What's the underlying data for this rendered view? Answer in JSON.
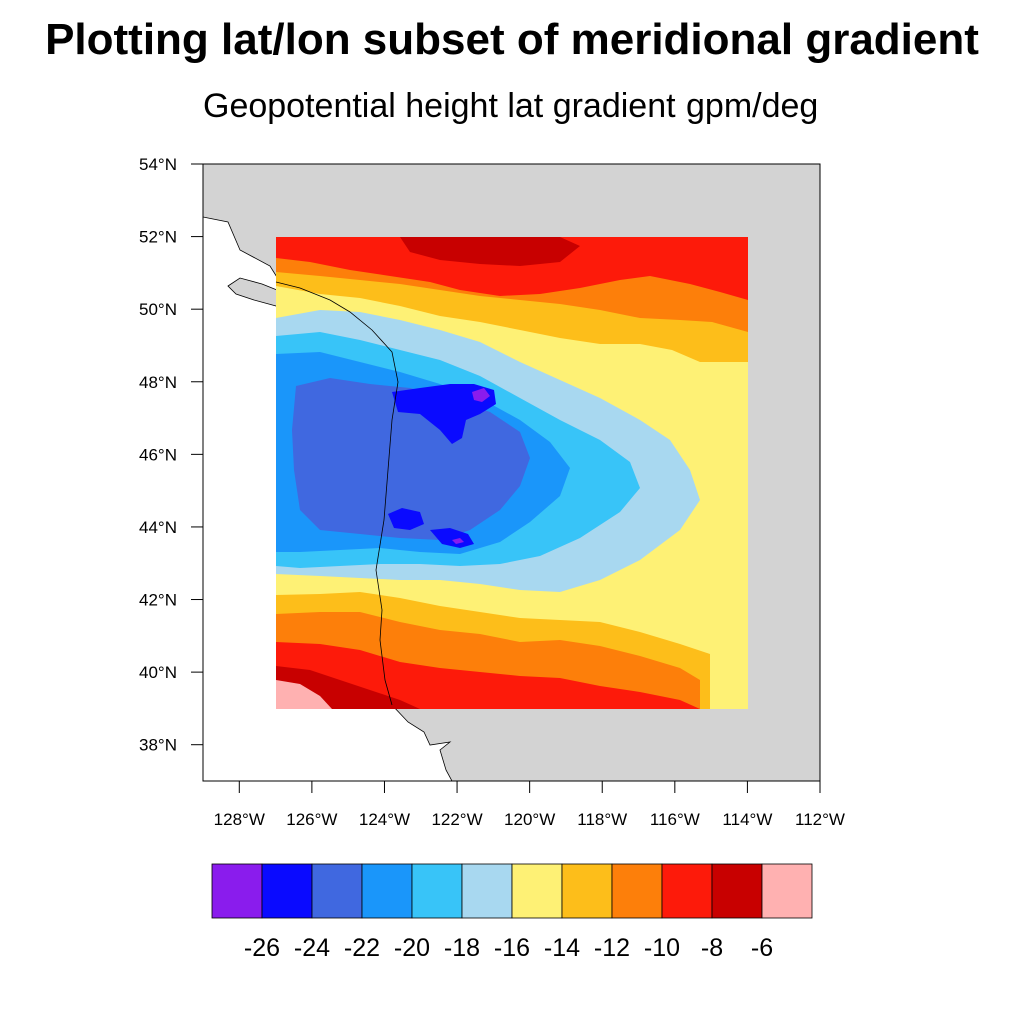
{
  "title": "Plotting lat/lon subset of meridional gradient",
  "subtitle_left": "Geopotential height lat gradient",
  "subtitle_right": "gpm/deg",
  "map": {
    "lon_range": [
      -129,
      -112
    ],
    "lat_range": [
      37,
      54
    ],
    "data_lon_range": [
      -127,
      -114
    ],
    "data_lat_range": [
      39,
      52
    ],
    "land_color": "#d3d3d3",
    "ocean_color": "#ffffff"
  },
  "axes": {
    "y_ticks": [
      {
        "value": 54,
        "label": "54°N"
      },
      {
        "value": 52,
        "label": "52°N"
      },
      {
        "value": 50,
        "label": "50°N"
      },
      {
        "value": 48,
        "label": "48°N"
      },
      {
        "value": 46,
        "label": "46°N"
      },
      {
        "value": 44,
        "label": "44°N"
      },
      {
        "value": 42,
        "label": "42°N"
      },
      {
        "value": 40,
        "label": "40°N"
      },
      {
        "value": 38,
        "label": "38°N"
      }
    ],
    "x_ticks": [
      {
        "value": -128,
        "label": "128°W"
      },
      {
        "value": -126,
        "label": "126°W"
      },
      {
        "value": -124,
        "label": "124°W"
      },
      {
        "value": -122,
        "label": "122°W"
      },
      {
        "value": -120,
        "label": "120°W"
      },
      {
        "value": -118,
        "label": "118°W"
      },
      {
        "value": -116,
        "label": "116°W"
      },
      {
        "value": -114,
        "label": "114°W"
      },
      {
        "value": -112,
        "label": "112°W"
      }
    ]
  },
  "colorbar": {
    "colors": [
      "#8a1ced",
      "#0a0aff",
      "#4068e0",
      "#1a96fa",
      "#38c4f8",
      "#a8d8f0",
      "#fef175",
      "#fdbe1a",
      "#fd7f0a",
      "#fd1a0a",
      "#c80000",
      "#ffb1b1"
    ],
    "labels": [
      "-26",
      "-24",
      "-22",
      "-20",
      "-18",
      "-16",
      "-14",
      "-12",
      "-10",
      "-8",
      "-6"
    ]
  }
}
